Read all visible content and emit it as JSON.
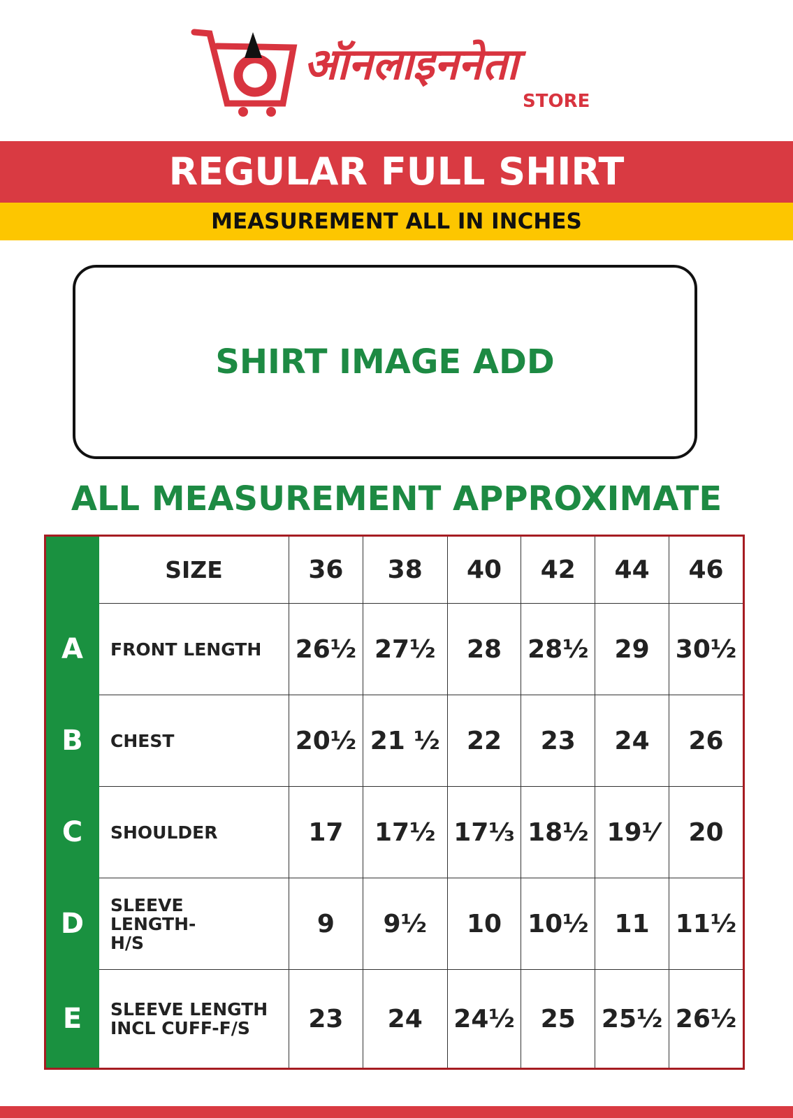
{
  "logo": {
    "text": "ऑनलाइननेता",
    "store": "STORE",
    "color": "#d8343f"
  },
  "title": "REGULAR FULL SHIRT",
  "subtitle": "MEASUREMENT ALL IN INCHES",
  "image_placeholder": "SHIRT IMAGE ADD",
  "note": "ALL MEASUREMENT APPROXIMATE",
  "colors": {
    "red": "#d93a42",
    "yellow": "#fdc600",
    "green": "#1a9140"
  },
  "table": {
    "size_label": "SIZE",
    "sizes": [
      "36",
      "38",
      "40",
      "42",
      "44",
      "46"
    ],
    "rows": [
      {
        "letter": "A",
        "label": "FRONT LENGTH",
        "values": [
          "26½",
          "27½",
          "28",
          "28½",
          "29",
          "30½"
        ]
      },
      {
        "letter": "B",
        "label": "CHEST",
        "values": [
          "20½",
          "21 ½",
          "22",
          "23",
          "24",
          "26"
        ]
      },
      {
        "letter": "C",
        "label": "SHOULDER",
        "values": [
          "17",
          "17½",
          "17⅓",
          "18½",
          "19⅟",
          "20"
        ]
      },
      {
        "letter": "D",
        "label": "SLEEVE LENGTH-H/S",
        "values": [
          "9",
          "9½",
          "10",
          "10½",
          "11",
          "11½"
        ]
      },
      {
        "letter": "E",
        "label": "SLEEVE LENGTH INCL CUFF-F/S",
        "values": [
          "23",
          "24",
          "24½",
          "25",
          "25½",
          "26½"
        ]
      }
    ]
  }
}
